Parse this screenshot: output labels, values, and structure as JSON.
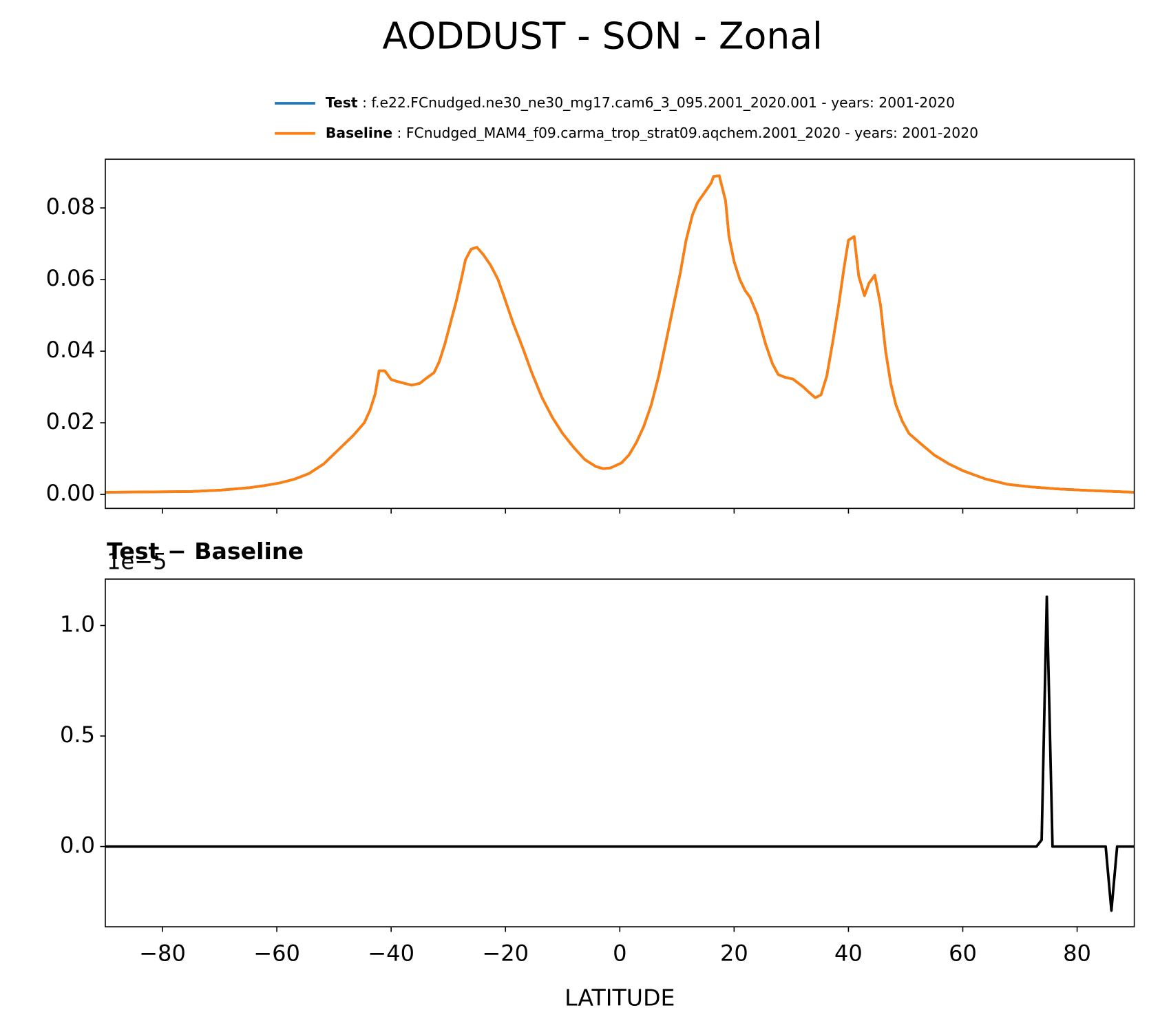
{
  "title": "AODDUST - SON - Zonal",
  "chart_data": [
    {
      "type": "line",
      "x": [
        -90,
        -75,
        -69.8,
        -64.7,
        -62,
        -59.5,
        -57,
        -54.4,
        -51.8,
        -49.2,
        -46.6,
        -44.7,
        -43.7,
        -42.8,
        -42.1,
        -41.1,
        -40,
        -38.9,
        -36.4,
        -35,
        -33.8,
        -32.5,
        -31.6,
        -30.6,
        -29.6,
        -28.6,
        -27.6,
        -27,
        -26,
        -25,
        -23.9,
        -22.6,
        -21.3,
        -20.2,
        -18.7,
        -17,
        -15.4,
        -13.6,
        -11.8,
        -10,
        -8,
        -6.1,
        -4.2,
        -2.9,
        -1.6,
        0.3,
        1.6,
        2.9,
        4.2,
        5.5,
        6.8,
        8,
        9.3,
        10.6,
        11.6,
        12.7,
        13.6,
        14.7,
        16,
        16.4,
        17.4,
        18.5,
        19.1,
        20,
        21,
        21.9,
        22.8,
        24.1,
        25.5,
        26.7,
        27.7,
        28.9,
        30.3,
        32.1,
        33.1,
        34.2,
        35.2,
        36.2,
        37.3,
        38.3,
        39.2,
        40,
        41,
        41.8,
        42.8,
        43.6,
        44.6,
        45.6,
        46.5,
        47.4,
        48.3,
        49.4,
        50.6,
        52.4,
        55,
        57.6,
        60.2,
        64,
        67.9,
        71.8,
        76.9,
        82,
        90
      ],
      "series": [
        {
          "name": "Test",
          "description": " : f.e22.FCnudged.ne30_ne30_mg17.cam6_3_095.2001_2020.001 - years: 2001-2020",
          "color": "#1f77b4",
          "values": [
            0.0006,
            0.0008,
            0.0012,
            0.0019,
            0.0025,
            0.0032,
            0.0042,
            0.0058,
            0.0085,
            0.0125,
            0.0165,
            0.02,
            0.0235,
            0.028,
            0.0345,
            0.0345,
            0.0321,
            0.0315,
            0.0305,
            0.031,
            0.0325,
            0.034,
            0.037,
            0.042,
            0.048,
            0.054,
            0.061,
            0.0655,
            0.0685,
            0.069,
            0.067,
            0.064,
            0.06,
            0.055,
            0.048,
            0.041,
            0.034,
            0.027,
            0.0215,
            0.017,
            0.013,
            0.0097,
            0.0078,
            0.0072,
            0.0074,
            0.0088,
            0.011,
            0.0145,
            0.019,
            0.025,
            0.033,
            0.042,
            0.052,
            0.062,
            0.071,
            0.078,
            0.0815,
            0.084,
            0.087,
            0.0888,
            0.089,
            0.082,
            0.072,
            0.065,
            0.06,
            0.057,
            0.055,
            0.05,
            0.042,
            0.0365,
            0.0335,
            0.0327,
            0.0322,
            0.03,
            0.0285,
            0.027,
            0.0278,
            0.033,
            0.043,
            0.053,
            0.063,
            0.071,
            0.072,
            0.061,
            0.0555,
            0.059,
            0.0612,
            0.053,
            0.04,
            0.031,
            0.025,
            0.0205,
            0.017,
            0.0145,
            0.011,
            0.0085,
            0.0065,
            0.0043,
            0.0028,
            0.0021,
            0.0015,
            0.0011,
            0.0006
          ]
        },
        {
          "name": "Baseline",
          "description": " : FCnudged_MAM4_f09.carma_trop_strat09.aqchem.2001_2020 - years: 2001-2020",
          "color": "#ff7f0e",
          "values": [
            0.0006,
            0.0008,
            0.0012,
            0.0019,
            0.0025,
            0.0032,
            0.0042,
            0.0058,
            0.0085,
            0.0125,
            0.0165,
            0.02,
            0.0235,
            0.028,
            0.0345,
            0.0345,
            0.0321,
            0.0315,
            0.0305,
            0.031,
            0.0325,
            0.034,
            0.037,
            0.042,
            0.048,
            0.054,
            0.061,
            0.0655,
            0.0685,
            0.069,
            0.067,
            0.064,
            0.06,
            0.055,
            0.048,
            0.041,
            0.034,
            0.027,
            0.0215,
            0.017,
            0.013,
            0.0097,
            0.0078,
            0.0072,
            0.0074,
            0.0088,
            0.011,
            0.0145,
            0.019,
            0.025,
            0.033,
            0.042,
            0.052,
            0.062,
            0.071,
            0.078,
            0.0815,
            0.084,
            0.087,
            0.0888,
            0.089,
            0.082,
            0.072,
            0.065,
            0.06,
            0.057,
            0.055,
            0.05,
            0.042,
            0.0365,
            0.0335,
            0.0327,
            0.0322,
            0.03,
            0.0285,
            0.027,
            0.0278,
            0.033,
            0.043,
            0.053,
            0.063,
            0.071,
            0.072,
            0.061,
            0.0555,
            0.059,
            0.0612,
            0.053,
            0.04,
            0.031,
            0.025,
            0.0205,
            0.017,
            0.0145,
            0.011,
            0.0085,
            0.0065,
            0.0043,
            0.0028,
            0.0021,
            0.0015,
            0.0011,
            0.0006
          ]
        }
      ],
      "xlim": [
        -90,
        90
      ],
      "ylim": [
        -0.0039,
        0.0936
      ],
      "yticks": [
        {
          "value": 0,
          "label": "0.00"
        },
        {
          "value": 0.02,
          "label": "0.02"
        },
        {
          "value": 0.04,
          "label": "0.04"
        },
        {
          "value": 0.06,
          "label": "0.06"
        },
        {
          "value": 0.08,
          "label": "0.08"
        }
      ],
      "legend": "upper right"
    },
    {
      "type": "line",
      "title": "Test − Baseline",
      "x_label": "LATITUDE",
      "y_offset_label": "1e−5",
      "x": [
        -90,
        72.9,
        73.8,
        74.7,
        75.7,
        85,
        86,
        87,
        90
      ],
      "series": [
        {
          "color": "#000000",
          "values": [
            0,
            0,
            0.03,
            1.13,
            0,
            0,
            -0.29,
            0,
            0
          ]
        }
      ],
      "xlim": [
        -90,
        90
      ],
      "ylim": [
        -0.363,
        1.21
      ],
      "xticks": [
        {
          "value": -80,
          "label": "−80"
        },
        {
          "value": -60,
          "label": "−60"
        },
        {
          "value": -40,
          "label": "−40"
        },
        {
          "value": -20,
          "label": "−20"
        },
        0,
        20,
        40,
        60,
        80
      ],
      "yticks": [
        {
          "value": 0,
          "label": "0.0"
        },
        0.5,
        {
          "value": 1,
          "label": "1.0"
        }
      ]
    }
  ]
}
